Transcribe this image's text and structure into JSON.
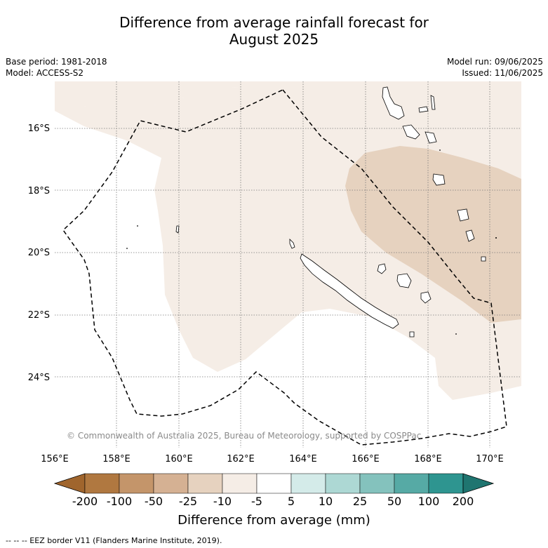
{
  "title_line1": "Difference from average rainfall forecast for",
  "title_line2": "August 2025",
  "base_period": "Base period: 1981-2018",
  "model": "Model: ACCESS-S2",
  "model_run": "Model run: 09/06/2025",
  "issued": "Issued: 11/06/2025",
  "copyright": "© Commonwealth of Australia 2025, Bureau of Meteorology, supported by COSPPac",
  "lat_ticks": [
    "16°S",
    "18°S",
    "20°S",
    "22°S",
    "24°S"
  ],
  "lon_ticks": [
    "156°E",
    "158°E",
    "160°E",
    "162°E",
    "164°E",
    "166°E",
    "168°E",
    "170°E"
  ],
  "colorbar": {
    "labels": [
      "-200",
      "-100",
      "-50",
      "-25",
      "-10",
      "-5",
      "5",
      "10",
      "25",
      "50",
      "100",
      "200"
    ],
    "colors": [
      "#a0652d",
      "#b07840",
      "#c4956a",
      "#d5b193",
      "#e6d2bf",
      "#f5ede6",
      "#ffffff",
      "#d4ebe9",
      "#add8d4",
      "#84c2bd",
      "#56aaa5",
      "#2e9590",
      "#1f7570"
    ],
    "title": "Difference from average (mm)"
  },
  "legend_text": "--  --  -- EEZ border V11 (Flanders Marine Institute, 2019)."
}
